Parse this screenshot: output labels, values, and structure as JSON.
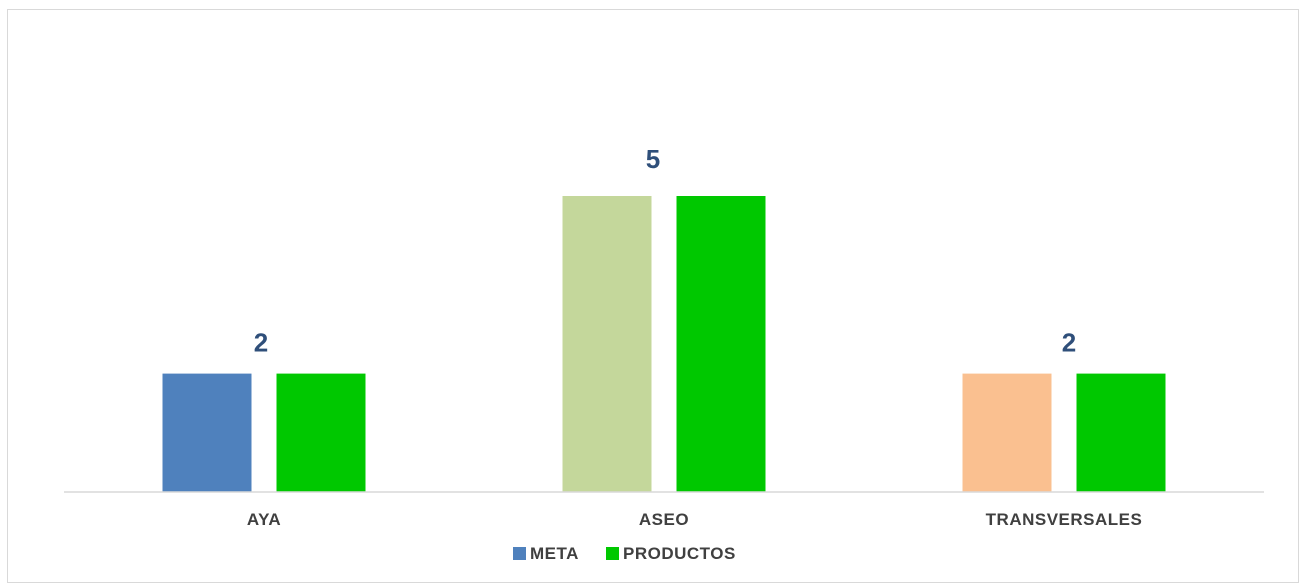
{
  "chart_data": {
    "type": "bar",
    "categories": [
      "AYA",
      "ASEO",
      "TRANSVERSALES"
    ],
    "series": [
      {
        "name": "META",
        "values": [
          2,
          5,
          2
        ],
        "colors": [
          "#4f81bd",
          "#c4d79b",
          "#fac090"
        ],
        "legend_color": "#4f81bd"
      },
      {
        "name": "PRODUCTOS",
        "values": [
          2,
          5,
          2
        ],
        "colors": [
          "#00c800",
          "#00c800",
          "#00c800"
        ],
        "legend_color": "#00c800"
      }
    ],
    "data_labels": [
      {
        "category": "AYA",
        "text": "2"
      },
      {
        "category": "ASEO",
        "text": "5"
      },
      {
        "category": "TRANSVERSALES",
        "text": "2"
      }
    ],
    "title": "",
    "xlabel": "",
    "ylabel": "",
    "ylim": [
      0,
      5
    ],
    "grid": false,
    "legend_position": "bottom"
  }
}
